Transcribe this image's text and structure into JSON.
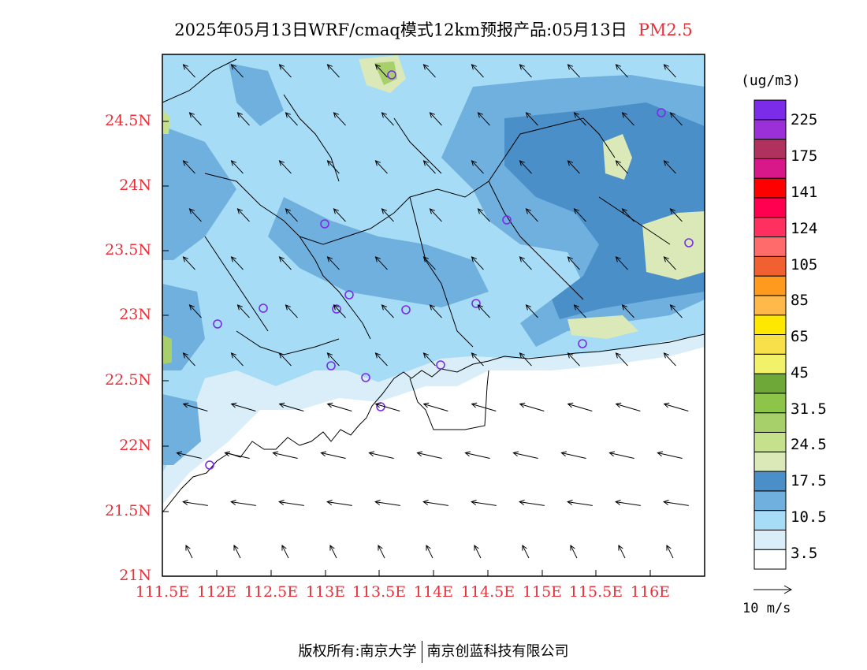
{
  "title": {
    "text": "2025年05月13日WRF/cmaq模式12km预报产品:05月13日",
    "variable": "PM2.5"
  },
  "map": {
    "lat_labels": [
      "24.5N",
      "24N",
      "23.5N",
      "23N",
      "22.5N",
      "22N",
      "21.5N",
      "21N"
    ],
    "lon_labels": [
      "111.5E",
      "112E",
      "112.5E",
      "113E",
      "113.5E",
      "114E",
      "114.5E",
      "115E",
      "115.5E",
      "116E"
    ],
    "lat_range": [
      21,
      25.0
    ],
    "lon_range": [
      111.5,
      116.5
    ]
  },
  "colorbar": {
    "unit": "(ug/m3)",
    "colors": [
      "#ffffff",
      "#d9eef8",
      "#a6dcf5",
      "#6fb0de",
      "#4a8fc8",
      "#dbe8b8",
      "#c6e18c",
      "#a8d06a",
      "#8cc54a",
      "#6ea838",
      "#f2f26a",
      "#f7e04a",
      "#ffe800",
      "#ffb84a",
      "#ff9a1e",
      "#f06030",
      "#ff6a6a",
      "#ff3060",
      "#ff0050",
      "#ff0000",
      "#d81888",
      "#b0305e",
      "#9b30d8",
      "#7a2ce8"
    ],
    "labels": [
      "3.5",
      "10.5",
      "17.5",
      "24.5",
      "31.5",
      "45",
      "65",
      "85",
      "105",
      "124",
      "141",
      "175",
      "225"
    ],
    "accent_color": "#e8303a"
  },
  "wind": {
    "reference_label": "10 m/s"
  },
  "footer": {
    "copyright_label": "版权所有:",
    "org1": "南京大学",
    "org2": "南京创蓝科技有限公司"
  }
}
